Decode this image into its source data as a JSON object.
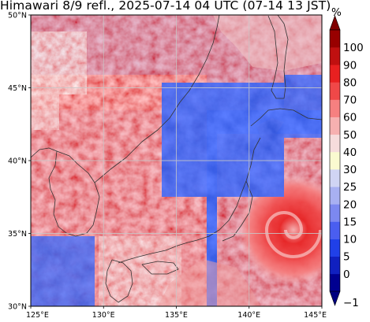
{
  "title": "Himawari 8/9 refl., 2025-07-14 04 UTC (07-14 13 JST)",
  "map": {
    "extent": {
      "lon_min": 125,
      "lon_max": 145,
      "lat_min": 30,
      "lat_max": 50
    },
    "lon_ticks": [
      {
        "value": 125,
        "label": "125°E"
      },
      {
        "value": 130,
        "label": "130°E"
      },
      {
        "value": 135,
        "label": "135°E"
      },
      {
        "value": 140,
        "label": "140°E"
      },
      {
        "value": 145,
        "label": "145°E"
      }
    ],
    "lat_ticks": [
      {
        "value": 30,
        "label": "30°N"
      },
      {
        "value": 35,
        "label": "35°N"
      },
      {
        "value": 40,
        "label": "40°N"
      },
      {
        "value": 45,
        "label": "45°N"
      },
      {
        "value": 50,
        "label": "50°N"
      }
    ],
    "gridlines": true,
    "gridline_color": "#c0c0c0",
    "coastline_color": "#333333"
  },
  "colorbar": {
    "unit": "%",
    "extend": "both",
    "labels": [
      "−1",
      "0",
      "5",
      "10",
      "15",
      "20",
      "25",
      "30",
      "40",
      "50",
      "60",
      "70",
      "80",
      "90",
      "100"
    ],
    "bounds": [
      -1,
      0,
      5,
      10,
      15,
      20,
      25,
      30,
      40,
      50,
      60,
      70,
      80,
      90,
      100
    ],
    "colors": [
      "#000090",
      "#1020c0",
      "#2040e8",
      "#4a5ef0",
      "#7c88f0",
      "#a8b0f2",
      "#d0d4f4",
      "#fafad0",
      "#f6dcdc",
      "#f6b0b0",
      "#f68080",
      "#f04848",
      "#e82020",
      "#c01010",
      "#980000"
    ],
    "under_color": "#000080",
    "over_color": "#800000"
  }
}
